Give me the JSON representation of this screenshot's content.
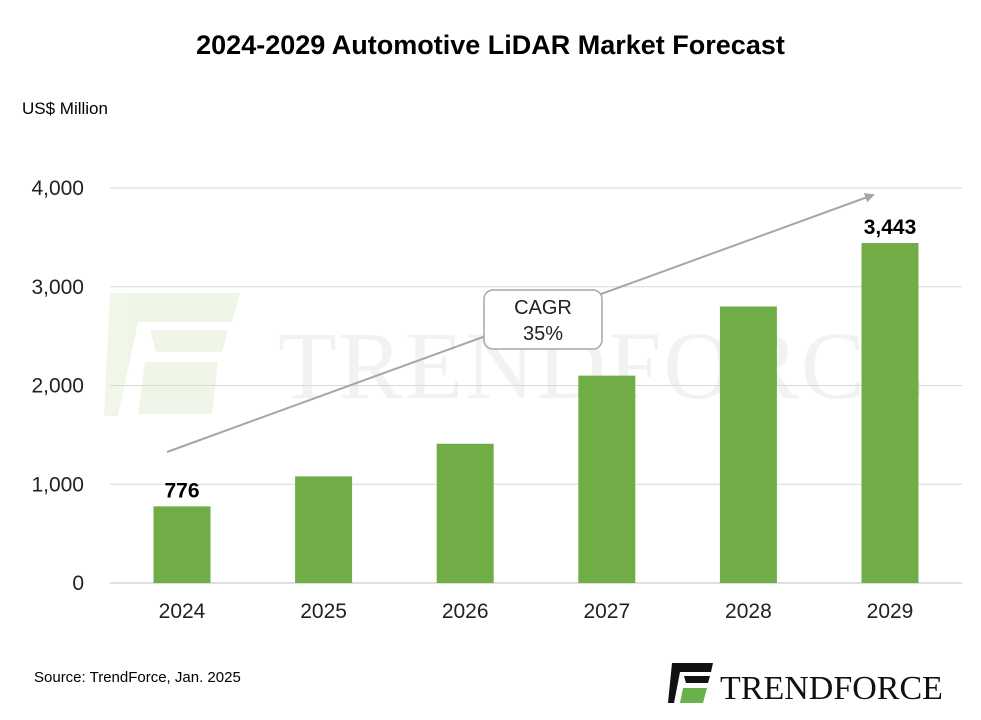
{
  "chart_data": {
    "type": "bar",
    "title": "2024-2029 Automotive LiDAR Market Forecast",
    "ylabel": "US$ Million",
    "xlabel": "",
    "categories": [
      "2024",
      "2025",
      "2026",
      "2027",
      "2028",
      "2029"
    ],
    "values": [
      776,
      1080,
      1410,
      2100,
      2800,
      3443
    ],
    "data_labels": {
      "2024": "776",
      "2029": "3,443"
    },
    "ylim": [
      0,
      4000
    ],
    "yticks": [
      0,
      1000,
      2000,
      3000,
      4000
    ],
    "ytick_labels": [
      "0",
      "1,000",
      "2,000",
      "3,000",
      "4,000"
    ],
    "grid": true,
    "bar_color": "#70ad47",
    "annotation": {
      "line1": "CAGR",
      "line2": "35%"
    }
  },
  "source": "Source: TrendForce, Jan. 2025",
  "watermark": {
    "text": "TRENDFORCE"
  },
  "logo": {
    "text": "TRENDFORCE"
  }
}
